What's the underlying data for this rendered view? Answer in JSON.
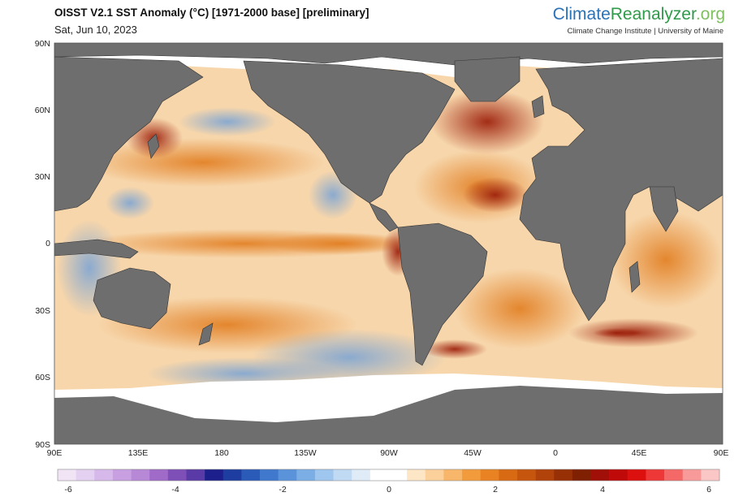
{
  "header": {
    "title": "OISST V2.1 SST Anomaly (°C) [1971-2000 base] [preliminary]",
    "date": "Sat, Jun 10, 2023",
    "brand": {
      "part1": "Climate",
      "part2": "Reanalyzer",
      "part3": ".org"
    },
    "brand_subtitle": "Climate Change Institute | University of Maine"
  },
  "map": {
    "lat_labels": [
      "90N",
      "60N",
      "30N",
      "0",
      "30S",
      "60S",
      "90S"
    ],
    "lon_labels": [
      "90E",
      "135E",
      "180",
      "135W",
      "90W",
      "45W",
      "0",
      "45E",
      "90E"
    ],
    "colors": {
      "land": "#6e6e6e",
      "sea_ice": "#ffffff",
      "border": "#333333"
    }
  },
  "colorbar": {
    "range": [
      -6,
      6
    ],
    "tick_labels": [
      "-6",
      "-4",
      "-2",
      "0",
      "2",
      "4",
      "6"
    ],
    "colors": [
      "#f0e4f5",
      "#e4d0f0",
      "#d7b8ea",
      "#c8a0e2",
      "#b788d6",
      "#a06ac8",
      "#7f4fb8",
      "#5a3aa6",
      "#1c1f8c",
      "#1d3ea0",
      "#2a5bb8",
      "#3f78cc",
      "#5b93da",
      "#7caee6",
      "#9ec6ee",
      "#c0daf4",
      "#dfecf8",
      "#ffffff",
      "#ffffff",
      "#fde6c6",
      "#fbd09a",
      "#f7b66a",
      "#f29b3c",
      "#e88222",
      "#d86a14",
      "#c6560e",
      "#b0420a",
      "#983006",
      "#802003",
      "#a01008",
      "#c00a0a",
      "#dd1010",
      "#ee3838",
      "#f56868",
      "#f99a9a",
      "#fbc6c6"
    ]
  }
}
